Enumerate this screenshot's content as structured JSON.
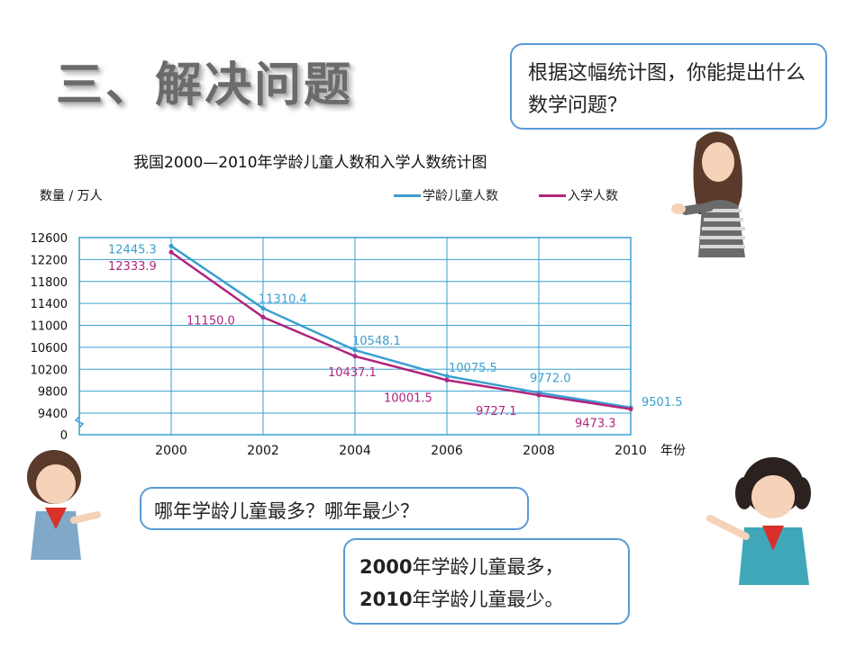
{
  "heading": "三、解决问题",
  "bubble_top_right": "根据这幅统计图，你能提出什么数学问题？",
  "bubble_left": "哪年学龄儿童最多？哪年最少？",
  "answer": {
    "line1_year": "2000",
    "line1_rest": "年学龄儿童最多，",
    "line2_year": "2010",
    "line2_rest": "年学龄儿童最少。"
  },
  "chart_data": {
    "type": "line",
    "title": "我国2000—2010年学龄儿童人数和入学人数统计图",
    "ylabel": "数量 / 万人",
    "xlabel": "年份",
    "x": [
      2000,
      2002,
      2004,
      2006,
      2008,
      2010
    ],
    "x_tick_labels": [
      "2000",
      "2002",
      "2004",
      "2006",
      "2008",
      "2010"
    ],
    "y_tick_labels": [
      "12600",
      "12200",
      "11800",
      "11400",
      "11000",
      "10600",
      "10200",
      "9800",
      "9400",
      "0"
    ],
    "ylim": [
      9400,
      12600
    ],
    "y_axis_break": true,
    "grid": true,
    "legend_position": "top-right",
    "series": [
      {
        "name": "学龄儿童人数",
        "color": "#3a9fd0",
        "values": [
          12445.3,
          11310.4,
          10548.1,
          10075.5,
          9772.0,
          9501.5
        ],
        "labels": [
          "12445.3",
          "11310.4",
          "10548.1",
          "10075.5",
          "9772.0",
          "9501.5"
        ]
      },
      {
        "name": "入学人数",
        "color": "#b0247d",
        "values": [
          12333.9,
          11150.0,
          10437.1,
          10001.5,
          9727.1,
          9473.3
        ],
        "labels": [
          "12333.9",
          "11150.0",
          "10437.1",
          "10001.5",
          "9727.1",
          "9473.3"
        ]
      }
    ]
  }
}
